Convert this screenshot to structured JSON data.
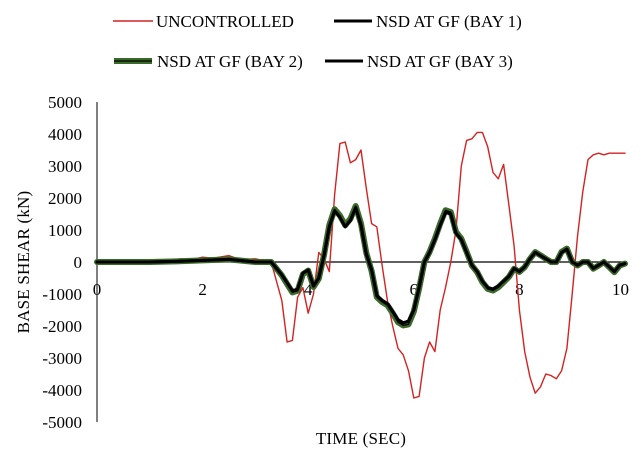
{
  "chart_data": {
    "type": "line",
    "xlabel": "TIME (SEC)",
    "ylabel": "BASE SHEAR (kN)",
    "xlim": [
      0,
      10
    ],
    "ylim": [
      -5000,
      5000
    ],
    "x_ticks": [
      0,
      2,
      4,
      6,
      8,
      10
    ],
    "x_tick_labels": [
      "0",
      "2",
      "4",
      "6",
      "8",
      "10"
    ],
    "y_ticks": [
      -5000,
      -4000,
      -3000,
      -2000,
      -1000,
      0,
      1000,
      2000,
      3000,
      4000,
      5000
    ],
    "y_tick_labels": [
      "-5000",
      "-4000",
      "-3000",
      "-2000",
      "-1000",
      "0",
      "1000",
      "2000",
      "3000",
      "4000",
      "5000"
    ],
    "grid": false,
    "legend_position": "top",
    "series": [
      {
        "name": "UNCONTROLLED",
        "color": "#d42222",
        "x": [
          0,
          0.5,
          1.0,
          1.3,
          1.6,
          1.8,
          2.0,
          2.2,
          2.5,
          2.7,
          3.0,
          3.3,
          3.5,
          3.6,
          3.7,
          3.8,
          3.9,
          4.0,
          4.1,
          4.2,
          4.3,
          4.4,
          4.5,
          4.6,
          4.7,
          4.8,
          4.9,
          5.0,
          5.1,
          5.2,
          5.3,
          5.4,
          5.5,
          5.6,
          5.7,
          5.8,
          5.9,
          6.0,
          6.1,
          6.2,
          6.3,
          6.4,
          6.5,
          6.6,
          6.7,
          6.8,
          6.9,
          7.0,
          7.1,
          7.2,
          7.3,
          7.4,
          7.5,
          7.6,
          7.7,
          7.8,
          7.9,
          8.0,
          8.1,
          8.2,
          8.3,
          8.4,
          8.5,
          8.6,
          8.7,
          8.8,
          8.9,
          9.0,
          9.1,
          9.2,
          9.3,
          9.4,
          9.5,
          9.6,
          9.7,
          9.8,
          9.9,
          10.0
        ],
        "y": [
          0,
          0,
          -20,
          50,
          100,
          80,
          150,
          120,
          200,
          80,
          100,
          0,
          -1200,
          -2500,
          -2450,
          -1100,
          -800,
          -1600,
          -1000,
          300,
          100,
          -300,
          2100,
          3700,
          3750,
          3100,
          3200,
          3500,
          2300,
          1200,
          1100,
          -100,
          -1200,
          -2000,
          -2700,
          -2900,
          -3400,
          -4250,
          -4200,
          -3000,
          -2500,
          -2800,
          -1500,
          -800,
          0,
          1000,
          3000,
          3800,
          3850,
          4050,
          4050,
          3600,
          2800,
          2600,
          3050,
          1800,
          500,
          -1500,
          -2800,
          -3600,
          -4100,
          -3900,
          -3500,
          -3550,
          -3650,
          -3400,
          -2700,
          -1000,
          800,
          2200,
          3200,
          3350,
          3400,
          3350,
          3400,
          3400,
          3400,
          3400
        ]
      },
      {
        "name": "NSD AT GF (BAY 1)",
        "color": "#000000",
        "x": [
          0,
          1.0,
          1.5,
          2.0,
          2.5,
          3.0,
          3.3,
          3.5,
          3.7,
          3.8,
          3.9,
          4.0,
          4.1,
          4.2,
          4.3,
          4.4,
          4.5,
          4.6,
          4.7,
          4.8,
          4.9,
          5.0,
          5.1,
          5.2,
          5.3,
          5.4,
          5.5,
          5.6,
          5.7,
          5.8,
          5.9,
          6.0,
          6.1,
          6.2,
          6.3,
          6.4,
          6.5,
          6.6,
          6.7,
          6.8,
          6.9,
          7.0,
          7.1,
          7.2,
          7.3,
          7.4,
          7.5,
          7.6,
          7.7,
          7.8,
          7.9,
          8.0,
          8.1,
          8.2,
          8.3,
          8.4,
          8.5,
          8.6,
          8.7,
          8.8,
          8.9,
          9.0,
          9.1,
          9.2,
          9.3,
          9.4,
          9.5,
          9.6,
          9.7,
          9.8,
          9.9,
          10.0
        ],
        "y": [
          0,
          0,
          20,
          50,
          80,
          0,
          0,
          -400,
          -900,
          -850,
          -350,
          -250,
          -750,
          -500,
          200,
          1100,
          1600,
          1400,
          1100,
          1300,
          1700,
          1150,
          250,
          -250,
          -1050,
          -1200,
          -1300,
          -1550,
          -1800,
          -1900,
          -1850,
          -1500,
          -800,
          0,
          300,
          700,
          1150,
          1550,
          1500,
          900,
          700,
          300,
          -100,
          -300,
          -600,
          -800,
          -850,
          -750,
          -600,
          -450,
          -200,
          -300,
          -150,
          100,
          300,
          200,
          100,
          0,
          0,
          300,
          400,
          0,
          -100,
          0,
          0,
          -200,
          -100,
          0,
          -150,
          -300,
          -100,
          -50
        ]
      },
      {
        "name": "NSD AT GF (BAY 2)",
        "color": "#3a6a2a",
        "x": [
          0,
          1.0,
          1.5,
          2.0,
          2.5,
          3.0,
          3.3,
          3.5,
          3.7,
          3.8,
          3.9,
          4.0,
          4.1,
          4.2,
          4.3,
          4.4,
          4.5,
          4.6,
          4.7,
          4.8,
          4.9,
          5.0,
          5.1,
          5.2,
          5.3,
          5.4,
          5.5,
          5.6,
          5.7,
          5.8,
          5.9,
          6.0,
          6.1,
          6.2,
          6.3,
          6.4,
          6.5,
          6.6,
          6.7,
          6.8,
          6.9,
          7.0,
          7.1,
          7.2,
          7.3,
          7.4,
          7.5,
          7.6,
          7.7,
          7.8,
          7.9,
          8.0,
          8.1,
          8.2,
          8.3,
          8.4,
          8.5,
          8.6,
          8.7,
          8.8,
          8.9,
          9.0,
          9.1,
          9.2,
          9.3,
          9.4,
          9.5,
          9.6,
          9.7,
          9.8,
          9.9,
          10.0
        ],
        "y": [
          0,
          0,
          20,
          50,
          80,
          0,
          0,
          -420,
          -950,
          -900,
          -380,
          -270,
          -780,
          -520,
          220,
          1150,
          1650,
          1450,
          1150,
          1350,
          1750,
          1200,
          280,
          -280,
          -1100,
          -1250,
          -1350,
          -1600,
          -1880,
          -1980,
          -1950,
          -1550,
          -830,
          0,
          320,
          730,
          1200,
          1620,
          1560,
          940,
          730,
          320,
          -110,
          -320,
          -630,
          -840,
          -890,
          -790,
          -630,
          -470,
          -210,
          -310,
          -160,
          100,
          310,
          210,
          100,
          0,
          0,
          320,
          420,
          0,
          -110,
          0,
          0,
          -210,
          -110,
          0,
          -160,
          -320,
          -110,
          -50
        ]
      },
      {
        "name": "NSD AT GF (BAY 3)",
        "color": "#000000",
        "x": [
          0,
          1.0,
          1.5,
          2.0,
          2.5,
          3.0,
          3.3,
          3.5,
          3.7,
          3.8,
          3.9,
          4.0,
          4.1,
          4.2,
          4.3,
          4.4,
          4.5,
          4.6,
          4.7,
          4.8,
          4.9,
          5.0,
          5.1,
          5.2,
          5.3,
          5.4,
          5.5,
          5.6,
          5.7,
          5.8,
          5.9,
          6.0,
          6.1,
          6.2,
          6.3,
          6.4,
          6.5,
          6.6,
          6.7,
          6.8,
          6.9,
          7.0,
          7.1,
          7.2,
          7.3,
          7.4,
          7.5,
          7.6,
          7.7,
          7.8,
          7.9,
          8.0,
          8.1,
          8.2,
          8.3,
          8.4,
          8.5,
          8.6,
          8.7,
          8.8,
          8.9,
          9.0,
          9.1,
          9.2,
          9.3,
          9.4,
          9.5,
          9.6,
          9.7,
          9.8,
          9.9,
          10.0
        ],
        "y": [
          0,
          0,
          20,
          50,
          80,
          0,
          0,
          -400,
          -900,
          -850,
          -350,
          -250,
          -750,
          -500,
          200,
          1100,
          1600,
          1400,
          1100,
          1300,
          1700,
          1150,
          250,
          -250,
          -1050,
          -1200,
          -1300,
          -1550,
          -1800,
          -1900,
          -1850,
          -1500,
          -800,
          0,
          300,
          700,
          1150,
          1550,
          1500,
          900,
          700,
          300,
          -100,
          -300,
          -600,
          -800,
          -850,
          -750,
          -600,
          -450,
          -200,
          -300,
          -150,
          100,
          300,
          200,
          100,
          0,
          0,
          300,
          400,
          0,
          -100,
          0,
          0,
          -200,
          -100,
          0,
          -150,
          -300,
          -100,
          -50
        ]
      }
    ],
    "legend": [
      {
        "label": "UNCONTROLLED",
        "color": "#d42222"
      },
      {
        "label": "NSD AT GF (BAY 1)",
        "color": "#000000"
      },
      {
        "label": "NSD AT GF (BAY 2)",
        "color": "#3a6a2a"
      },
      {
        "label": "NSD AT GF (BAY 3)",
        "color": "#000000"
      }
    ]
  }
}
